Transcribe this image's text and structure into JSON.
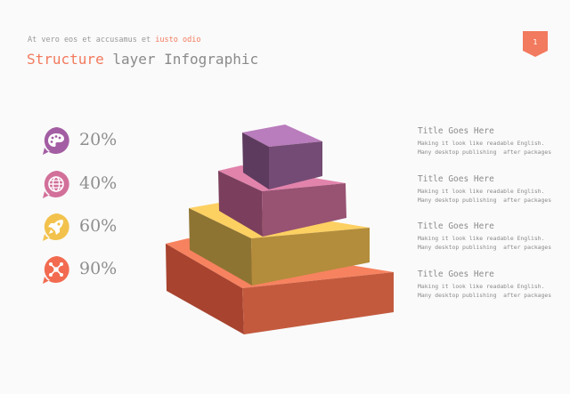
{
  "header": {
    "subtitle_prefix": "At vero eos et accusamus et ",
    "subtitle_accent": "iusto odio",
    "title_accent": "Structure",
    "title_rest": " layer Infographic",
    "page_number": "1"
  },
  "colors": {
    "accent": "#f27a5e",
    "purple": "#a35ea3",
    "pink": "#d2709a",
    "yellow": "#f2c24d",
    "orange": "#f26b50"
  },
  "stats": [
    {
      "value": "20%",
      "icon": "palette-icon",
      "color": "#a35ea3"
    },
    {
      "value": "40%",
      "icon": "globe-icon",
      "color": "#d2709a"
    },
    {
      "value": "60%",
      "icon": "rocket-icon",
      "color": "#f2c24d"
    },
    {
      "value": "90%",
      "icon": "network-icon",
      "color": "#f26b50"
    }
  ],
  "items": [
    {
      "title": "Title Goes Here",
      "line1": "Making it look like readable English.",
      "line2": "Many desktop publishing  after packages"
    },
    {
      "title": "Title Goes Here",
      "line1": "Making it look like readable English.",
      "line2": "Many desktop publishing  after packages"
    },
    {
      "title": "Title Goes Here",
      "line1": "Making it look like readable English.",
      "line2": "Many desktop publishing  after packages"
    },
    {
      "title": "Title Goes Here",
      "line1": "Making it look like readable English.",
      "line2": "Many desktop publishing  after packages"
    }
  ]
}
